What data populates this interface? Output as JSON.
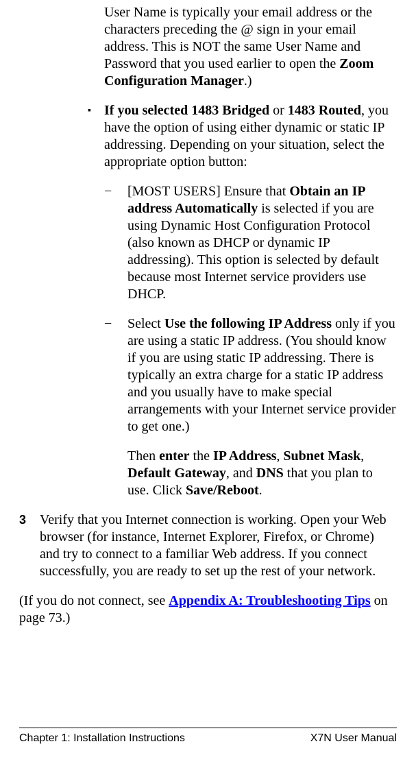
{
  "top": {
    "pre": "User Name is typically your email address or the characters preceding the @ sign in your email address. This is NOT the same User Name and Password that you used earlier to open the ",
    "bold1": "Zoom Configuration Manager",
    "post": ".)"
  },
  "bullet1": {
    "marker": "▪",
    "lead": "If you selected 1483 Bridged",
    "mid": " or ",
    "bold2": "1483 Routed",
    "rest": ", you have the option of using either dynamic or static IP addressing. Depending on your situation, select the appropriate option button:"
  },
  "sub1": {
    "marker": "−",
    "pre": "[MOST USERS] Ensure that ",
    "bold": "Obtain an IP address Automatically",
    "post": " is selected if you are using Dynamic Host Configuration Protocol (also known as DHCP or dynamic IP addressing). This option is selected by default because most Internet service providers use DHCP."
  },
  "sub2": {
    "marker": "−",
    "pre": "Select ",
    "bold": "Use the following IP Address",
    "post": " only if you are using a static IP address. (You should know if you are using static IP addressing. There is typically an extra charge for a static IP address and you usually have to make special arrangements with your Internet service provider to get one.)"
  },
  "sub2b": {
    "t1": "Then ",
    "b1": "enter",
    "t2": " the ",
    "b2": "IP Address",
    "t3": ", ",
    "b3": "Subnet Mask",
    "t4": ", ",
    "b4": "Default Gateway",
    "t5": ", and ",
    "b5": "DNS",
    "t6": " that you plan to use. Click ",
    "b6": "Save/Reboot",
    "t7": "."
  },
  "step3": {
    "num": "3",
    "text": "Verify that you Internet connection is working. Open your Web browser (for instance, Internet Explorer, Firefox, or Chrome) and try to connect to a familiar Web address. If you connect successfully, you are ready to set up the rest of your network."
  },
  "note": {
    "pre": "(If you do not connect, see ",
    "link": "Appendix A: Troubleshooting Tips",
    "post": " on page 73.)"
  },
  "footer": {
    "left": "Chapter 1: Installation Instructions",
    "right": "X7N User Manual"
  }
}
